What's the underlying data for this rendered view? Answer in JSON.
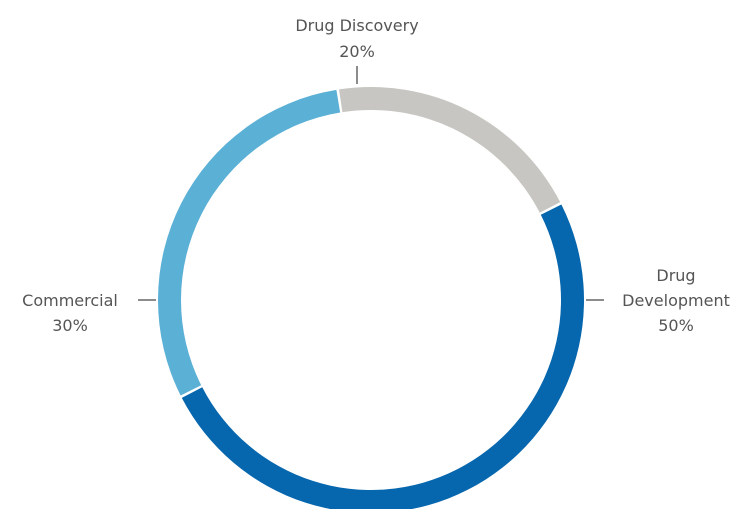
{
  "chart_data": {
    "type": "pie",
    "variant": "donut",
    "title": "",
    "categories": [
      "Drug Development",
      "Commercial",
      "Drug Discovery"
    ],
    "values": [
      50,
      30,
      20
    ],
    "value_labels": [
      "50%",
      "30%",
      "20%"
    ],
    "label_lines": [
      [
        "Drug",
        "Development"
      ],
      [
        "Commercial"
      ],
      [
        "Drug Discovery"
      ]
    ],
    "colors": [
      "#0767ae",
      "#5bb0d6",
      "#c8c6c2"
    ],
    "legend": "none"
  }
}
